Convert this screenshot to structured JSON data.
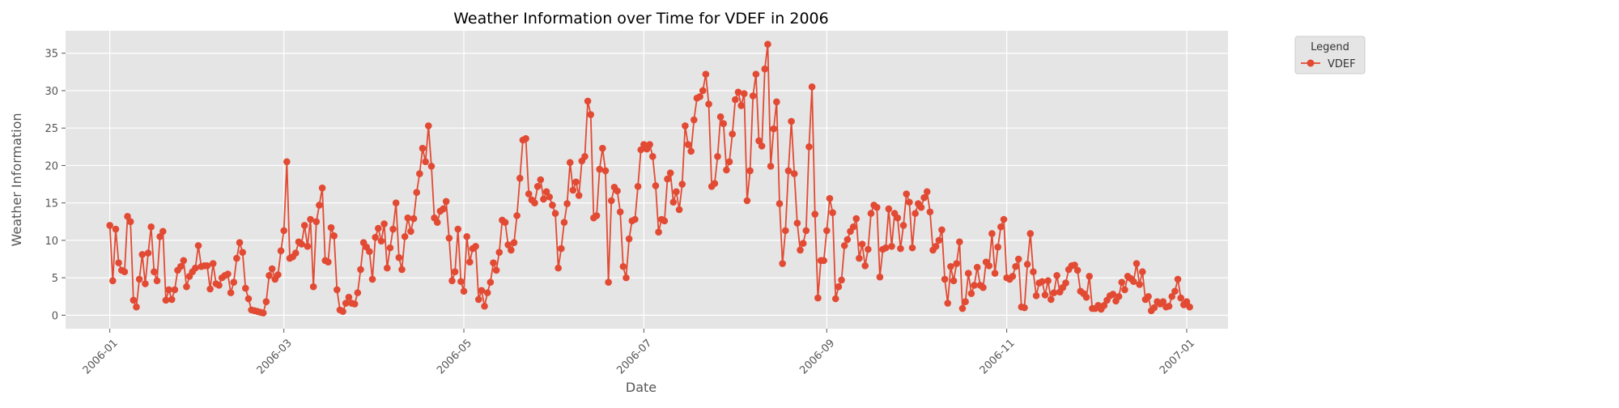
{
  "chart_data": {
    "type": "line",
    "title": "Weather Information over Time for VDEF in 2006",
    "xlabel": "Date",
    "ylabel": "Weather Information",
    "x_range": [
      "2005-12-17",
      "2007-01-15"
    ],
    "ylim": [
      -1.8,
      38.0
    ],
    "x_ticks": [
      "2006-01-01",
      "2006-03-01",
      "2006-05-01",
      "2006-07-01",
      "2006-09-01",
      "2006-11-01",
      "2007-01-01"
    ],
    "x_tick_labels": [
      "2006-01",
      "2006-03",
      "2006-05",
      "2006-07",
      "2006-09",
      "2006-11",
      "2007-01"
    ],
    "y_ticks": [
      0,
      5,
      10,
      15,
      20,
      25,
      30,
      35
    ],
    "y_tick_labels": [
      "0",
      "5",
      "10",
      "15",
      "20",
      "25",
      "30",
      "35"
    ],
    "grid": true,
    "legend": {
      "title": "Legend",
      "placement": "outside-top-right"
    },
    "colors": {
      "series": "#E24A33",
      "plot_background": "#E5E5E5",
      "grid": "#FFFFFF",
      "text": "#555555",
      "title": "#000000"
    },
    "x_start": "2006-01-01",
    "x_step_days": 1,
    "series": [
      {
        "name": "VDEF",
        "marker": "circle",
        "values": [
          12.0,
          4.6,
          11.5,
          7.0,
          6.0,
          5.8,
          13.2,
          12.5,
          2.0,
          1.1,
          4.8,
          8.1,
          4.2,
          8.3,
          11.8,
          5.8,
          4.6,
          10.5,
          11.2,
          2.0,
          3.4,
          2.1,
          3.4,
          6.0,
          6.5,
          7.3,
          3.8,
          5.2,
          5.8,
          6.3,
          9.3,
          6.5,
          6.6,
          6.6,
          3.5,
          6.9,
          4.2,
          4.0,
          5.0,
          5.3,
          5.5,
          3.0,
          4.4,
          7.6,
          9.7,
          8.4,
          3.6,
          2.2,
          0.7,
          0.6,
          0.5,
          0.4,
          0.3,
          1.8,
          5.3,
          6.2,
          4.8,
          5.4,
          8.6,
          11.3,
          20.5,
          7.6,
          7.8,
          8.3,
          9.8,
          9.5,
          12.0,
          9.2,
          12.8,
          3.8,
          12.5,
          14.7,
          17.0,
          7.3,
          7.1,
          11.7,
          10.6,
          3.4,
          0.7,
          0.5,
          1.6,
          2.4,
          1.6,
          1.5,
          3.0,
          6.1,
          9.7,
          9.1,
          8.5,
          4.8,
          10.4,
          11.6,
          9.9,
          12.2,
          6.3,
          9.0,
          11.5,
          15.0,
          7.7,
          6.1,
          10.5,
          13.0,
          11.2,
          12.9,
          16.4,
          18.9,
          22.3,
          20.5,
          25.3,
          19.9,
          13.0,
          12.4,
          13.9,
          14.2,
          15.2,
          10.3,
          4.6,
          5.8,
          11.5,
          4.5,
          3.2,
          10.5,
          7.1,
          8.9,
          9.2,
          2.1,
          3.3,
          1.2,
          3.0,
          4.4,
          7.0,
          6.0,
          8.4,
          12.7,
          12.4,
          9.4,
          8.7,
          9.7,
          13.3,
          18.3,
          23.4,
          23.6,
          16.2,
          15.4,
          15.0,
          17.2,
          18.1,
          15.5,
          16.5,
          15.8,
          14.7,
          13.6,
          6.3,
          8.9,
          12.4,
          14.9,
          20.4,
          16.7,
          17.8,
          16.0,
          20.6,
          21.2,
          28.6,
          26.8,
          13.0,
          13.3,
          19.5,
          22.3,
          19.3,
          4.4,
          15.3,
          17.1,
          16.6,
          13.8,
          6.5,
          5.0,
          10.2,
          12.6,
          12.8,
          17.2,
          22.1,
          22.8,
          22.2,
          22.8,
          21.2,
          17.3,
          11.1,
          12.8,
          12.6,
          18.2,
          19.0,
          15.1,
          16.5,
          14.1,
          17.5,
          25.3,
          22.8,
          21.9,
          26.1,
          29.0,
          29.2,
          30.0,
          32.2,
          28.2,
          17.2,
          17.6,
          21.2,
          26.5,
          25.6,
          19.4,
          20.5,
          24.2,
          28.8,
          29.8,
          28.0,
          29.6,
          15.3,
          19.3,
          29.3,
          32.2,
          23.3,
          22.6,
          32.9,
          36.2,
          19.9,
          24.9,
          28.5,
          14.9,
          6.9,
          11.3,
          19.3,
          25.9,
          18.9,
          12.3,
          8.7,
          9.6,
          11.3,
          22.5,
          30.5,
          13.5,
          2.3,
          7.3,
          7.3,
          11.3,
          15.6,
          13.7,
          2.2,
          3.8,
          4.7,
          9.3,
          10.1,
          11.2,
          11.8,
          12.9,
          7.6,
          9.5,
          6.6,
          8.8,
          13.6,
          14.7,
          14.4,
          5.1,
          8.8,
          9.0,
          14.2,
          9.2,
          13.6,
          13.0,
          8.9,
          12.0,
          16.2,
          15.1,
          9.0,
          13.6,
          14.9,
          14.4,
          15.7,
          16.5,
          13.8,
          8.7,
          9.2,
          10.0,
          11.4,
          4.8,
          1.6,
          6.5,
          4.6,
          6.9,
          9.8,
          0.9,
          1.8,
          5.6,
          2.9,
          4.0,
          6.4,
          4.0,
          3.7,
          7.1,
          6.6,
          10.9,
          5.6,
          9.1,
          11.8,
          12.8,
          5.0,
          4.8,
          5.2,
          6.5,
          7.5,
          1.1,
          1.0,
          6.8,
          10.9,
          5.8,
          2.6,
          4.3,
          4.5,
          2.7,
          4.6,
          2.1,
          3.0,
          5.3,
          3.1,
          3.7,
          4.3,
          6.1,
          6.6,
          6.7,
          6.0,
          3.2,
          2.9,
          2.4,
          5.2,
          0.9,
          0.9,
          1.3,
          0.8,
          1.3,
          2.0,
          2.6,
          2.8,
          1.9,
          2.5,
          4.4,
          3.4,
          5.2,
          4.9,
          4.5,
          6.9,
          4.1,
          5.8,
          2.1,
          2.5,
          0.6,
          1.0,
          1.8,
          1.5,
          1.8,
          1.1,
          1.2,
          2.5,
          3.2,
          4.8,
          2.3,
          1.4,
          1.8,
          1.1
        ]
      }
    ]
  }
}
